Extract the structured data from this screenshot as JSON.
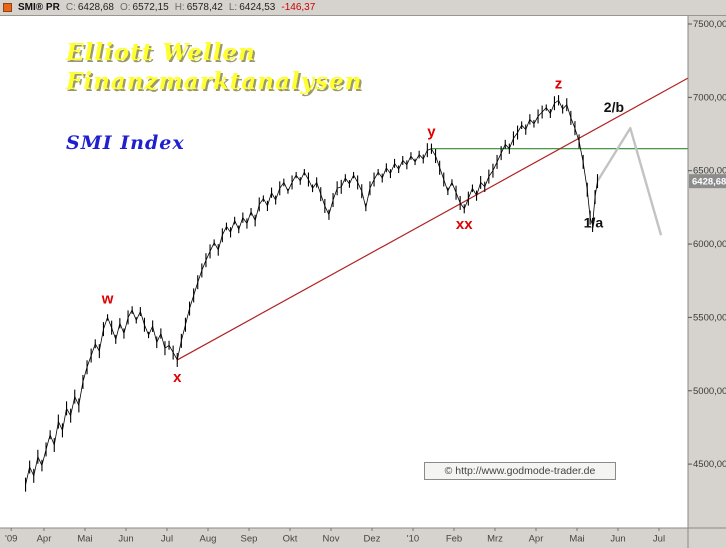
{
  "topbar": {
    "symbol": "SMI® PR",
    "fields": [
      {
        "label": "C:",
        "value": "6428,68"
      },
      {
        "label": "O:",
        "value": "6572,15"
      },
      {
        "label": "H:",
        "value": "6578,42"
      },
      {
        "label": "L:",
        "value": "6424,53"
      }
    ],
    "change": "-146,37"
  },
  "overlays": {
    "title_line1": "Elliott Wellen",
    "title_line2": "Finanzmarktanalysen",
    "subtitle": "SMI Index",
    "copyright": "© http://www.godmode-trader.de"
  },
  "colors": {
    "title_yellow": "#ffff2e",
    "subtitle_blue": "#1f1fd0",
    "wave_red": "#e00000",
    "trendline_red": "#b22222",
    "support_green": "#2e8b2e",
    "projection_gray": "#c3c3c3",
    "change_red": "#cc0000",
    "last_price_bg": "#8c8c8c",
    "panel_gray": "#d6d3ce",
    "bar_black": "#000000"
  },
  "chart_data": {
    "type": "line",
    "style": "ohlc-bars",
    "title": "SMI Index",
    "last_price": 6428.68,
    "ylim": [
      4060,
      7560
    ],
    "y_ticks": [
      7500,
      7000,
      6500,
      6000,
      5500,
      5000,
      4500
    ],
    "x_axis": {
      "unit": "months (Apr 2009 - Jul 2010)",
      "labels": [
        {
          "label": "'09",
          "t": 0.2
        },
        {
          "label": "Apr",
          "t": 1
        },
        {
          "label": "Mai",
          "t": 2
        },
        {
          "label": "Jun",
          "t": 3
        },
        {
          "label": "Jul",
          "t": 4
        },
        {
          "label": "Aug",
          "t": 5
        },
        {
          "label": "Sep",
          "t": 6
        },
        {
          "label": "Okt",
          "t": 7
        },
        {
          "label": "Nov",
          "t": 8
        },
        {
          "label": "Dez",
          "t": 9
        },
        {
          "label": "'10",
          "t": 10
        },
        {
          "label": "Feb",
          "t": 11
        },
        {
          "label": "Mrz",
          "t": 12
        },
        {
          "label": "Apr",
          "t": 13
        },
        {
          "label": "Mai",
          "t": 14
        },
        {
          "label": "Jun",
          "t": 15
        },
        {
          "label": "Jul",
          "t": 16
        }
      ]
    },
    "series": [
      [
        0.55,
        4360
      ],
      [
        0.65,
        4480
      ],
      [
        0.75,
        4420
      ],
      [
        0.85,
        4550
      ],
      [
        0.95,
        4490
      ],
      [
        1.05,
        4600
      ],
      [
        1.15,
        4700
      ],
      [
        1.25,
        4630
      ],
      [
        1.35,
        4790
      ],
      [
        1.45,
        4730
      ],
      [
        1.55,
        4880
      ],
      [
        1.65,
        4830
      ],
      [
        1.75,
        4960
      ],
      [
        1.85,
        4900
      ],
      [
        1.95,
        5060
      ],
      [
        2.05,
        5160
      ],
      [
        2.15,
        5240
      ],
      [
        2.25,
        5320
      ],
      [
        2.35,
        5270
      ],
      [
        2.45,
        5420
      ],
      [
        2.55,
        5500
      ],
      [
        2.65,
        5430
      ],
      [
        2.75,
        5350
      ],
      [
        2.85,
        5460
      ],
      [
        2.95,
        5390
      ],
      [
        3.05,
        5500
      ],
      [
        3.15,
        5550
      ],
      [
        3.25,
        5480
      ],
      [
        3.35,
        5540
      ],
      [
        3.45,
        5450
      ],
      [
        3.55,
        5380
      ],
      [
        3.65,
        5440
      ],
      [
        3.75,
        5330
      ],
      [
        3.85,
        5390
      ],
      [
        3.95,
        5290
      ],
      [
        4.05,
        5310
      ],
      [
        4.15,
        5260
      ],
      [
        4.25,
        5210
      ],
      [
        4.35,
        5340
      ],
      [
        4.45,
        5450
      ],
      [
        4.55,
        5560
      ],
      [
        4.65,
        5650
      ],
      [
        4.75,
        5740
      ],
      [
        4.85,
        5820
      ],
      [
        4.95,
        5890
      ],
      [
        5.05,
        5950
      ],
      [
        5.15,
        6010
      ],
      [
        5.25,
        5960
      ],
      [
        5.35,
        6060
      ],
      [
        5.45,
        6120
      ],
      [
        5.55,
        6080
      ],
      [
        5.65,
        6160
      ],
      [
        5.75,
        6100
      ],
      [
        5.85,
        6180
      ],
      [
        5.95,
        6140
      ],
      [
        6.05,
        6220
      ],
      [
        6.15,
        6160
      ],
      [
        6.25,
        6270
      ],
      [
        6.35,
        6310
      ],
      [
        6.45,
        6260
      ],
      [
        6.55,
        6350
      ],
      [
        6.65,
        6300
      ],
      [
        6.75,
        6380
      ],
      [
        6.85,
        6420
      ],
      [
        6.95,
        6360
      ],
      [
        7.05,
        6420
      ],
      [
        7.15,
        6470
      ],
      [
        7.25,
        6430
      ],
      [
        7.35,
        6490
      ],
      [
        7.45,
        6440
      ],
      [
        7.55,
        6380
      ],
      [
        7.65,
        6420
      ],
      [
        7.75,
        6340
      ],
      [
        7.85,
        6260
      ],
      [
        7.95,
        6200
      ],
      [
        8.05,
        6300
      ],
      [
        8.15,
        6380
      ],
      [
        8.25,
        6390
      ],
      [
        8.35,
        6450
      ],
      [
        8.45,
        6410
      ],
      [
        8.55,
        6470
      ],
      [
        8.65,
        6420
      ],
      [
        8.75,
        6360
      ],
      [
        8.85,
        6250
      ],
      [
        8.95,
        6380
      ],
      [
        9.05,
        6440
      ],
      [
        9.15,
        6490
      ],
      [
        9.25,
        6450
      ],
      [
        9.35,
        6520
      ],
      [
        9.45,
        6480
      ],
      [
        9.55,
        6550
      ],
      [
        9.65,
        6510
      ],
      [
        9.75,
        6570
      ],
      [
        9.85,
        6540
      ],
      [
        9.95,
        6600
      ],
      [
        10.05,
        6560
      ],
      [
        10.15,
        6610
      ],
      [
        10.25,
        6580
      ],
      [
        10.35,
        6640
      ],
      [
        10.45,
        6650
      ],
      [
        10.55,
        6600
      ],
      [
        10.65,
        6520
      ],
      [
        10.75,
        6440
      ],
      [
        10.85,
        6360
      ],
      [
        10.95,
        6420
      ],
      [
        11.05,
        6350
      ],
      [
        11.15,
        6280
      ],
      [
        11.25,
        6240
      ],
      [
        11.35,
        6310
      ],
      [
        11.45,
        6380
      ],
      [
        11.55,
        6330
      ],
      [
        11.65,
        6420
      ],
      [
        11.75,
        6390
      ],
      [
        11.85,
        6460
      ],
      [
        11.95,
        6500
      ],
      [
        12.05,
        6560
      ],
      [
        12.15,
        6620
      ],
      [
        12.25,
        6680
      ],
      [
        12.35,
        6650
      ],
      [
        12.45,
        6720
      ],
      [
        12.55,
        6760
      ],
      [
        12.65,
        6810
      ],
      [
        12.75,
        6780
      ],
      [
        12.85,
        6850
      ],
      [
        12.95,
        6820
      ],
      [
        13.05,
        6870
      ],
      [
        13.15,
        6900
      ],
      [
        13.25,
        6930
      ],
      [
        13.35,
        6890
      ],
      [
        13.45,
        6960
      ],
      [
        13.55,
        6980
      ],
      [
        13.65,
        6920
      ],
      [
        13.75,
        6950
      ],
      [
        13.85,
        6860
      ],
      [
        13.95,
        6790
      ],
      [
        14.05,
        6700
      ],
      [
        14.15,
        6560
      ],
      [
        14.25,
        6370
      ],
      [
        14.32,
        6180
      ],
      [
        14.38,
        6130
      ],
      [
        14.44,
        6320
      ],
      [
        14.5,
        6428.68
      ]
    ],
    "trendline": {
      "color": "#b22222",
      "points": [
        [
          4.25,
          5210
        ],
        [
          16.7,
          7130
        ]
      ]
    },
    "support_line": {
      "color": "#2e8b2e",
      "price": 6650,
      "t_start": 10.45,
      "t_end": 16.7
    },
    "projection": {
      "color": "#c3c3c3",
      "points": [
        [
          14.5,
          6428.68
        ],
        [
          15.3,
          6790
        ],
        [
          16.05,
          6060
        ]
      ]
    },
    "annotations": [
      {
        "text": "w",
        "t": 2.55,
        "price": 5500,
        "dy": -14,
        "color": "#e00000",
        "size": 15
      },
      {
        "text": "x",
        "t": 4.25,
        "price": 5210,
        "dy": 22,
        "color": "#e00000",
        "size": 15
      },
      {
        "text": "y",
        "t": 10.45,
        "price": 6650,
        "dy": -12,
        "color": "#e00000",
        "size": 15
      },
      {
        "text": "xx",
        "t": 11.25,
        "price": 6240,
        "dy": 20,
        "color": "#e00000",
        "size": 15
      },
      {
        "text": "z",
        "t": 13.55,
        "price": 6980,
        "dy": -12,
        "color": "#e00000",
        "size": 15
      },
      {
        "text": "2/b",
        "t": 14.9,
        "price": 6900,
        "dy": 0,
        "color": "#111111",
        "size": 14
      },
      {
        "text": "1/a",
        "t": 14.4,
        "price": 6180,
        "dy": 10,
        "color": "#111111",
        "size": 14
      }
    ]
  }
}
